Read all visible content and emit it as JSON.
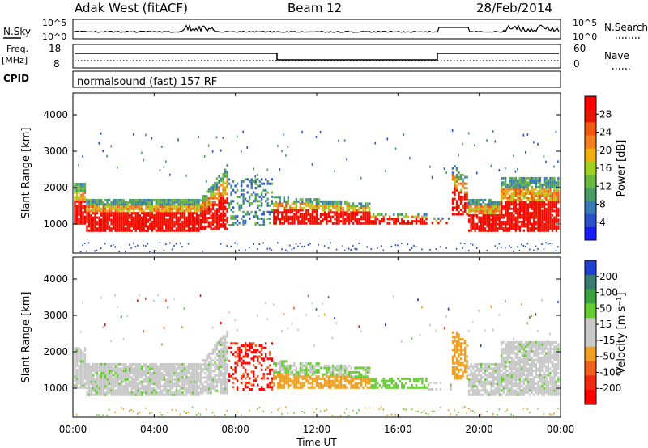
{
  "header": {
    "station": "Adak West (fitACF)",
    "beam": "Beam 12",
    "date": "28/Feb/2014"
  },
  "noise_panel": {
    "left_label": "N.Sky",
    "right_label": "N.Search",
    "left_ticks": [
      "10^5",
      "10^0"
    ],
    "right_ticks": [
      "10^5",
      "10^0"
    ]
  },
  "freq_panel": {
    "left_label_line1": "Freq.",
    "left_label_line2": "[MHz]",
    "left_ticks": [
      "18",
      "8"
    ],
    "right_label": "Nave",
    "right_ticks": [
      "60",
      "0"
    ]
  },
  "cpid_panel": {
    "label": "CPID",
    "text": "normalsound (fast) 157 RF"
  },
  "colors": {
    "power_scale": [
      "#1a1aff",
      "#2c50c8",
      "#3a7ab4",
      "#4a9a66",
      "#6ab840",
      "#a0d020",
      "#f0b010",
      "#f08020",
      "#ef5a10",
      "#e81800",
      "#ff0000"
    ],
    "velocity_scale": [
      "#ff0000",
      "#ef2a10",
      "#f06020",
      "#f0a020",
      "#c8c8c8",
      "#c8c8c8",
      "#66cc33",
      "#3aa040",
      "#3a7a70",
      "#2040d0"
    ]
  },
  "chart_data": [
    {
      "type": "heatmap",
      "name": "power",
      "ylabel": "Slant Range [km]",
      "yticks": [
        "1000",
        "2000",
        "3000",
        "4000"
      ],
      "ylim": [
        200,
        4600
      ],
      "xlim": [
        0,
        24
      ],
      "colorbar_label": "Power [dB]",
      "colorbar_ticks": [
        "4",
        "8",
        "12",
        "16",
        "20",
        "24",
        "28"
      ],
      "colorbar_range": [
        0,
        32
      ]
    },
    {
      "type": "heatmap",
      "name": "velocity",
      "ylabel": "Slant Range [km]",
      "yticks": [
        "1000",
        "2000",
        "3000",
        "4000"
      ],
      "ylim": [
        200,
        4600
      ],
      "xlim": [
        0,
        24
      ],
      "colorbar_label": "Velocity [m s⁻¹]",
      "colorbar_ticks": [
        "200",
        "100",
        "50",
        "15",
        "-15",
        "-50",
        "-100",
        "-200"
      ],
      "colorbar_range": [
        -250,
        250
      ]
    }
  ],
  "x_axis": {
    "label": "Time UT",
    "ticks": [
      "00:00",
      "04:00",
      "08:00",
      "12:00",
      "16:00",
      "20:00",
      "00:00"
    ]
  }
}
